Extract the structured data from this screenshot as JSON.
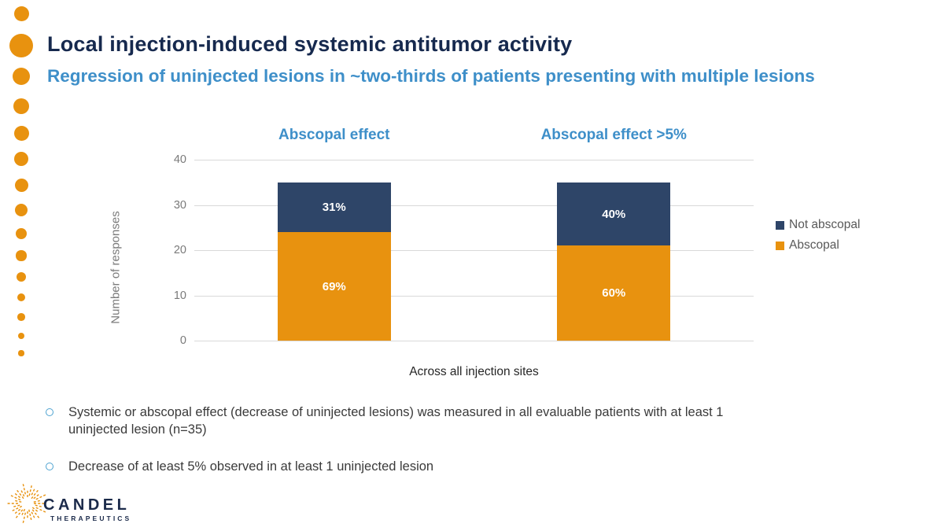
{
  "header": {
    "title": "Local injection-induced systemic antitumor activity",
    "subtitle": "Regression of uninjected lesions in ~two-thirds of patients presenting with multiple lesions"
  },
  "chart_data": {
    "type": "stacked-bar",
    "categories": [
      "Abscopal effect",
      "Abscopal effect >5%"
    ],
    "column_titles": [
      "Abscopal effect",
      "Abscopal effect >5%"
    ],
    "series": [
      {
        "name": "Abscopal",
        "color": "#E8920F",
        "values": [
          24,
          21
        ],
        "labels": [
          "69%",
          "60%"
        ]
      },
      {
        "name": "Not abscopal",
        "color": "#2E4568",
        "values": [
          11,
          14
        ],
        "labels": [
          "31%",
          "40%"
        ]
      }
    ],
    "bar_totals": [
      35,
      35
    ],
    "ylabel": "Number of responses",
    "xlabel": "Across all injection sites",
    "ylim": [
      0,
      40
    ],
    "yticks": [
      0,
      10,
      20,
      30,
      40
    ],
    "grid": true,
    "legend_position": "right",
    "legend": [
      {
        "label": "Not abscopal",
        "color": "#2E4568"
      },
      {
        "label": "Abscopal",
        "color": "#E8920F"
      }
    ]
  },
  "bullets": [
    {
      "text": "Systemic or abscopal effect (decrease of uninjected lesions) was measured in all evaluable patients with at least 1 uninjected lesion (n=35)"
    },
    {
      "text": "Decrease of at least 5% observed in at least 1 uninjected lesion"
    }
  ],
  "logo": {
    "name": "CANDEL",
    "subname": "THERAPEUTICS"
  },
  "colors": {
    "title_navy": "#16294E",
    "accent_blue": "#3E8FC9",
    "bar_navy": "#2E4568",
    "bar_orange": "#E8920F",
    "gridline": "#D9D9D9",
    "tick_gray": "#7A7A7A",
    "legend_gray": "#595959",
    "bullet_text": "#3A3A3A"
  }
}
